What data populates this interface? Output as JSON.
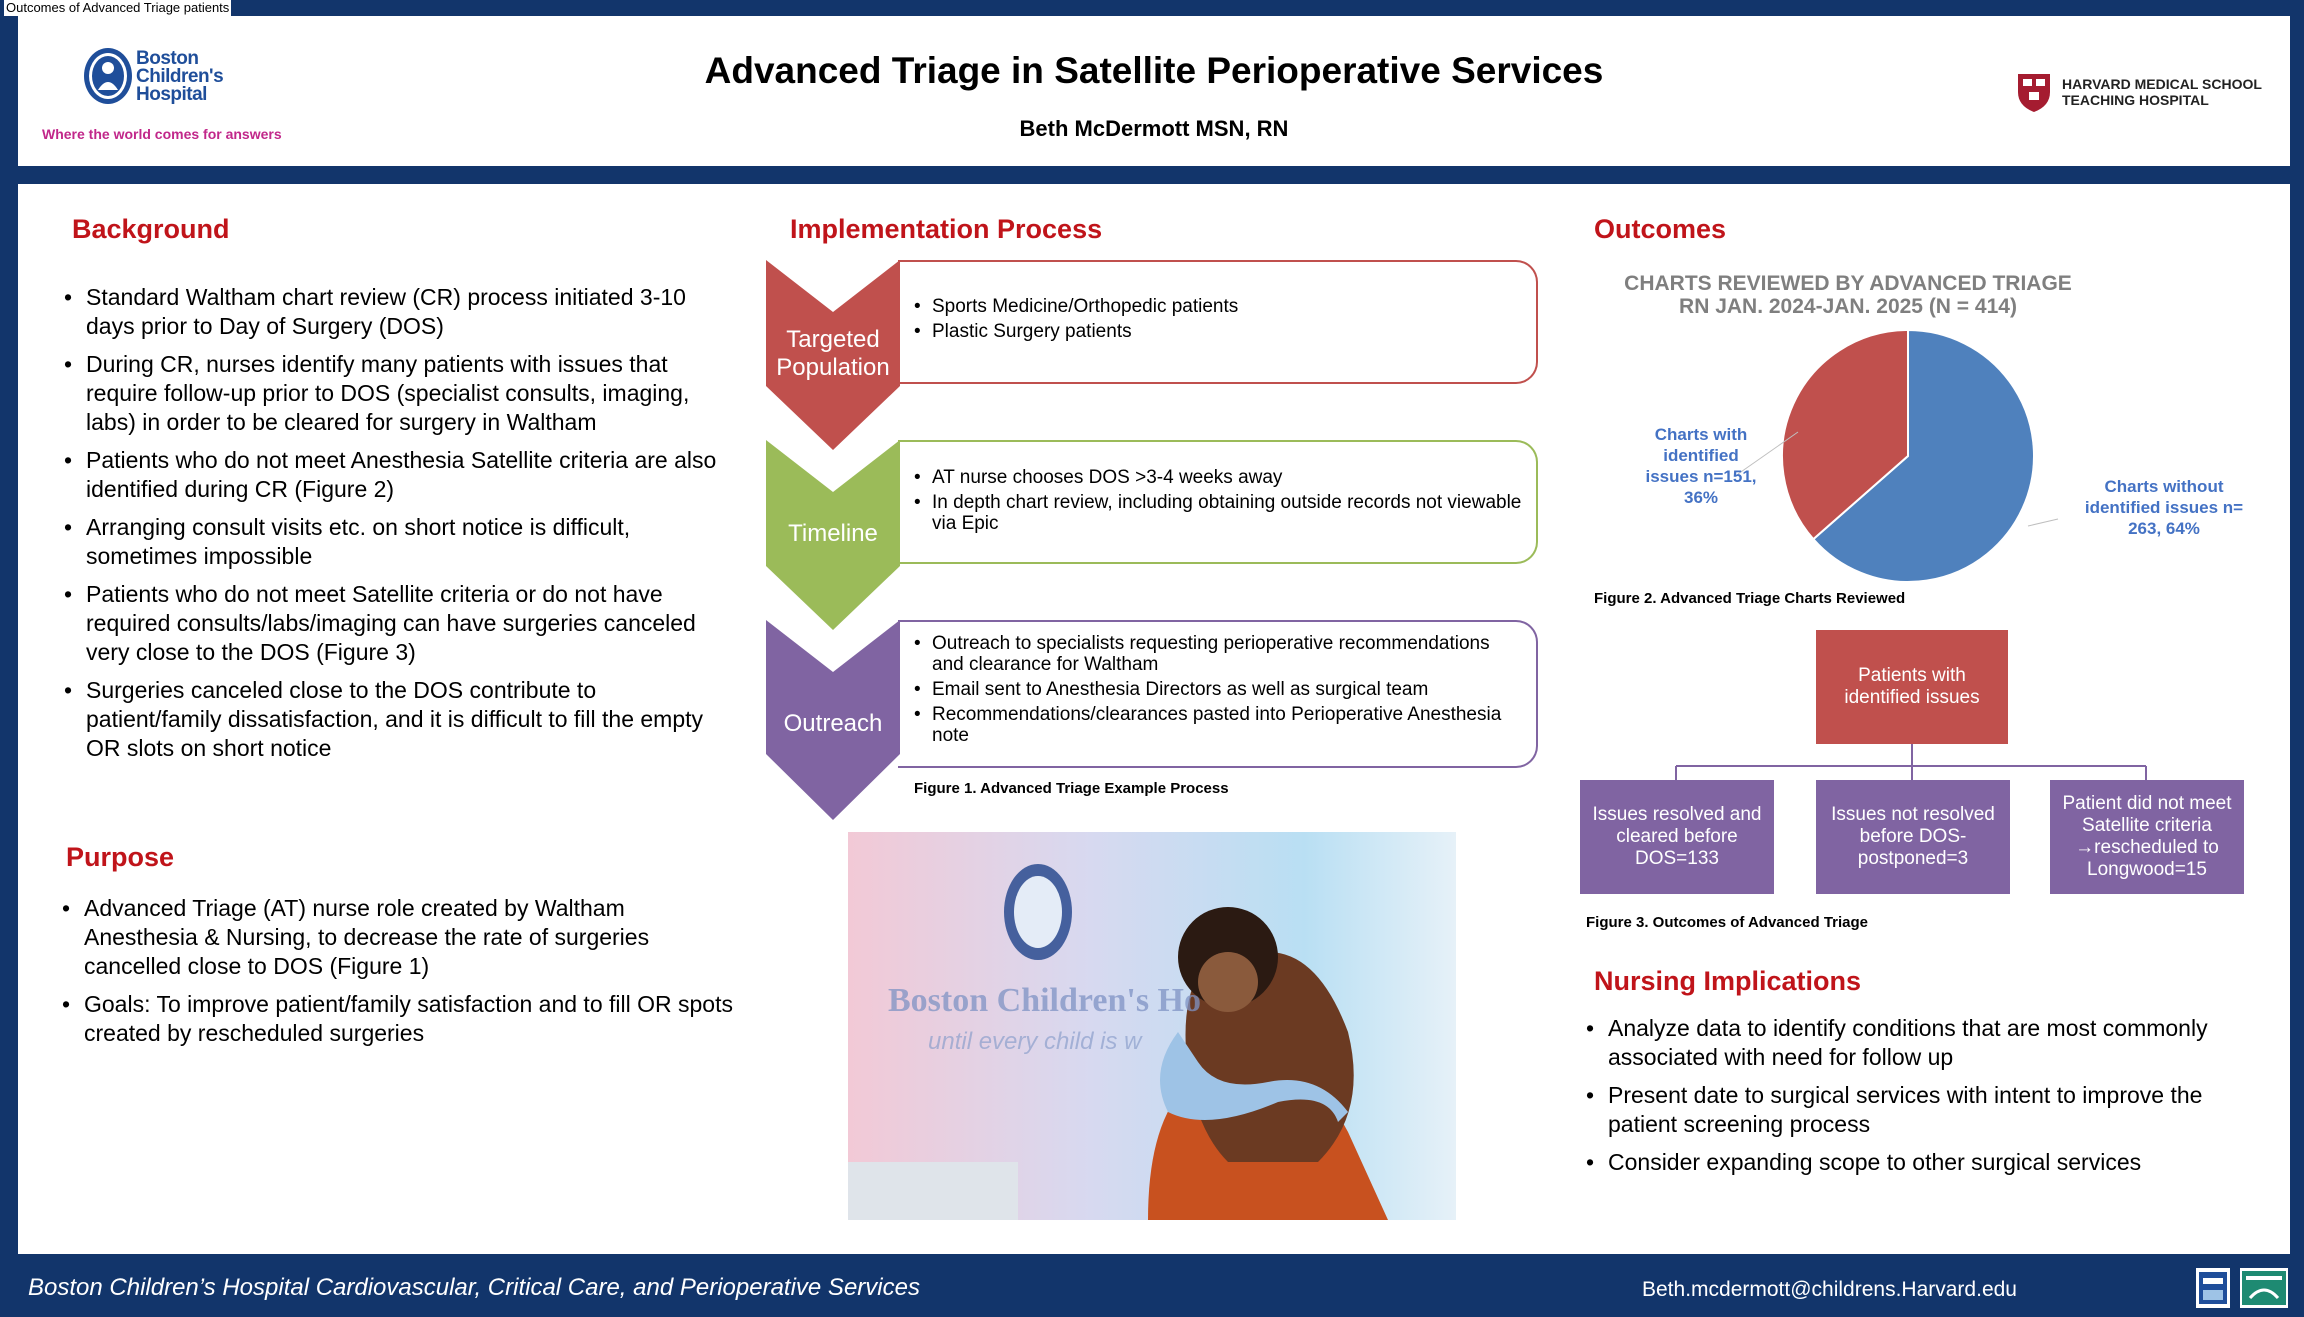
{
  "tab_title": "Outcomes of Advanced Triage patients",
  "header": {
    "title": "Advanced Triage in Satellite Perioperative Services",
    "author": "Beth McDermott MSN, RN",
    "logo_left": {
      "line1": "Boston",
      "line2": "Children's",
      "line3": "Hospital",
      "tagline": "Where the world comes for answers"
    },
    "logo_right": {
      "line1": "HARVARD MEDICAL SCHOOL",
      "line2": "TEACHING HOSPITAL"
    }
  },
  "background": {
    "title": "Background",
    "items": [
      "Standard Waltham chart review (CR) process initiated 3-10 days prior to Day of Surgery (DOS)",
      "During CR, nurses identify many patients with issues that require follow-up prior to DOS (specialist consults, imaging, labs) in order to be cleared for surgery in Waltham",
      "Patients who do not meet Anesthesia Satellite criteria are also identified during CR (Figure 2)",
      "Arranging consult visits etc. on short notice is difficult, sometimes impossible",
      "Patients who do not meet Satellite criteria or do not have required consults/labs/imaging can have surgeries canceled very close to the DOS (Figure 3)",
      "Surgeries canceled close to the DOS contribute to patient/family dissatisfaction, and it is difficult to fill the empty OR slots on short notice"
    ]
  },
  "purpose": {
    "title": "Purpose",
    "items": [
      "Advanced Triage (AT) nurse role created by Waltham Anesthesia & Nursing, to decrease the rate of surgeries cancelled close to DOS (Figure 1)",
      "Goals: To improve patient/family satisfaction and to fill OR spots created by rescheduled surgeries"
    ]
  },
  "implementation": {
    "title": "Implementation Process",
    "steps": [
      {
        "label": "Targeted Population",
        "color": "#c0504d",
        "items": [
          "Sports Medicine/Orthopedic patients",
          "Plastic Surgery patients"
        ]
      },
      {
        "label": "Timeline",
        "color": "#9bbb59",
        "items": [
          "AT nurse chooses DOS >3-4 weeks away",
          "In depth chart review, including obtaining outside records not viewable via Epic"
        ]
      },
      {
        "label": "Outreach",
        "color": "#8064a2",
        "items": [
          "Outreach to specialists requesting perioperative recommendations and clearance for Waltham",
          "Email sent to Anesthesia Directors as well as surgical team",
          "Recommendations/clearances pasted into Perioperative Anesthesia note"
        ]
      }
    ],
    "figure_caption": "Figure 1. Advanced Triage Example Process",
    "photo_sign": "Boston Children's Ho",
    "photo_sign2": "until every child is w"
  },
  "outcomes": {
    "title": "Outcomes",
    "chart_title_line1": "CHARTS REVIEWED BY ADVANCED TRIAGE",
    "chart_title_line2": "RN   JAN. 2024-JAN. 2025 (N = 414)",
    "label_with": "Charts with identified issues  n=151, 36%",
    "label_without": "Charts without identified issues n= 263, 64%",
    "figure2_caption": "Figure 2. Advanced Triage Charts Reviewed",
    "flow_top": "Patients with identified issues",
    "flow_children": [
      "Issues resolved and cleared before DOS=133",
      "Issues not resolved before DOS-postponed=3",
      "Patient did not meet Satellite criteria →rescheduled to Longwood=15"
    ],
    "figure3_caption": "Figure 3. Outcomes of Advanced Triage"
  },
  "chart_data": {
    "type": "pie",
    "title": "CHARTS REVIEWED BY ADVANCED TRIAGE RN   JAN. 2024-JAN. 2025 (N = 414)",
    "slices": [
      {
        "name": "Charts with identified issues",
        "value": 151,
        "percent": 36,
        "color": "#c0504d"
      },
      {
        "name": "Charts without identified issues",
        "value": 263,
        "percent": 64,
        "color": "#4f81bd"
      }
    ]
  },
  "nursing": {
    "title": "Nursing Implications",
    "items": [
      "Analyze data to identify conditions that are most commonly associated with need for follow up",
      "Present date to surgical services with intent to improve the patient screening process",
      "Consider expanding scope to other surgical services"
    ]
  },
  "footer": {
    "left": "Boston Children’s Hospital Cardiovascular, Critical Care, and Perioperative Services",
    "email": "Beth.mcdermott@childrens.Harvard.edu"
  }
}
